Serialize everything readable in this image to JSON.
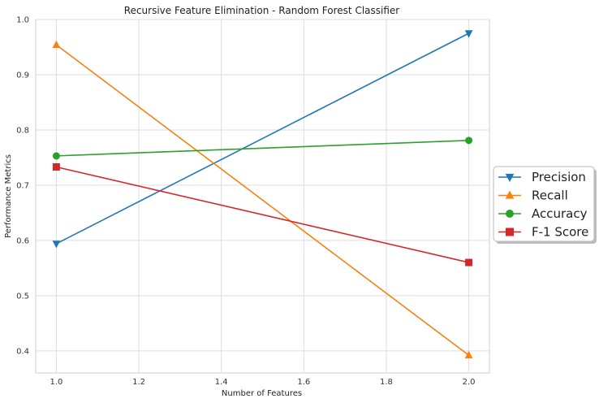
{
  "chart_data": {
    "type": "line",
    "title": "Recursive Feature Elimination - Random Forest Classifier",
    "xlabel": "Number of Features",
    "ylabel": "Performance Metrics",
    "x": [
      1.0,
      2.0
    ],
    "xlim": [
      0.95,
      2.05
    ],
    "ylim": [
      0.36,
      1.0
    ],
    "xticks": [
      "1.0",
      "1.2",
      "1.4",
      "1.6",
      "1.8",
      "2.0"
    ],
    "yticks": [
      "0.4",
      "0.5",
      "0.6",
      "0.7",
      "0.8",
      "0.9",
      "1.0"
    ],
    "grid": true,
    "legend_position": "outside-right",
    "series": [
      {
        "name": "Precision",
        "values": [
          0.594,
          0.975
        ],
        "color": "#1f77b4",
        "marker": "triangle-down"
      },
      {
        "name": "Recall",
        "values": [
          0.954,
          0.392
        ],
        "color": "#ff7f0e",
        "marker": "triangle-up"
      },
      {
        "name": "Accuracy",
        "values": [
          0.753,
          0.781
        ],
        "color": "#2ca02c",
        "marker": "circle"
      },
      {
        "name": "F-1 Score",
        "values": [
          0.733,
          0.56
        ],
        "color": "#d62728",
        "marker": "square"
      }
    ]
  }
}
